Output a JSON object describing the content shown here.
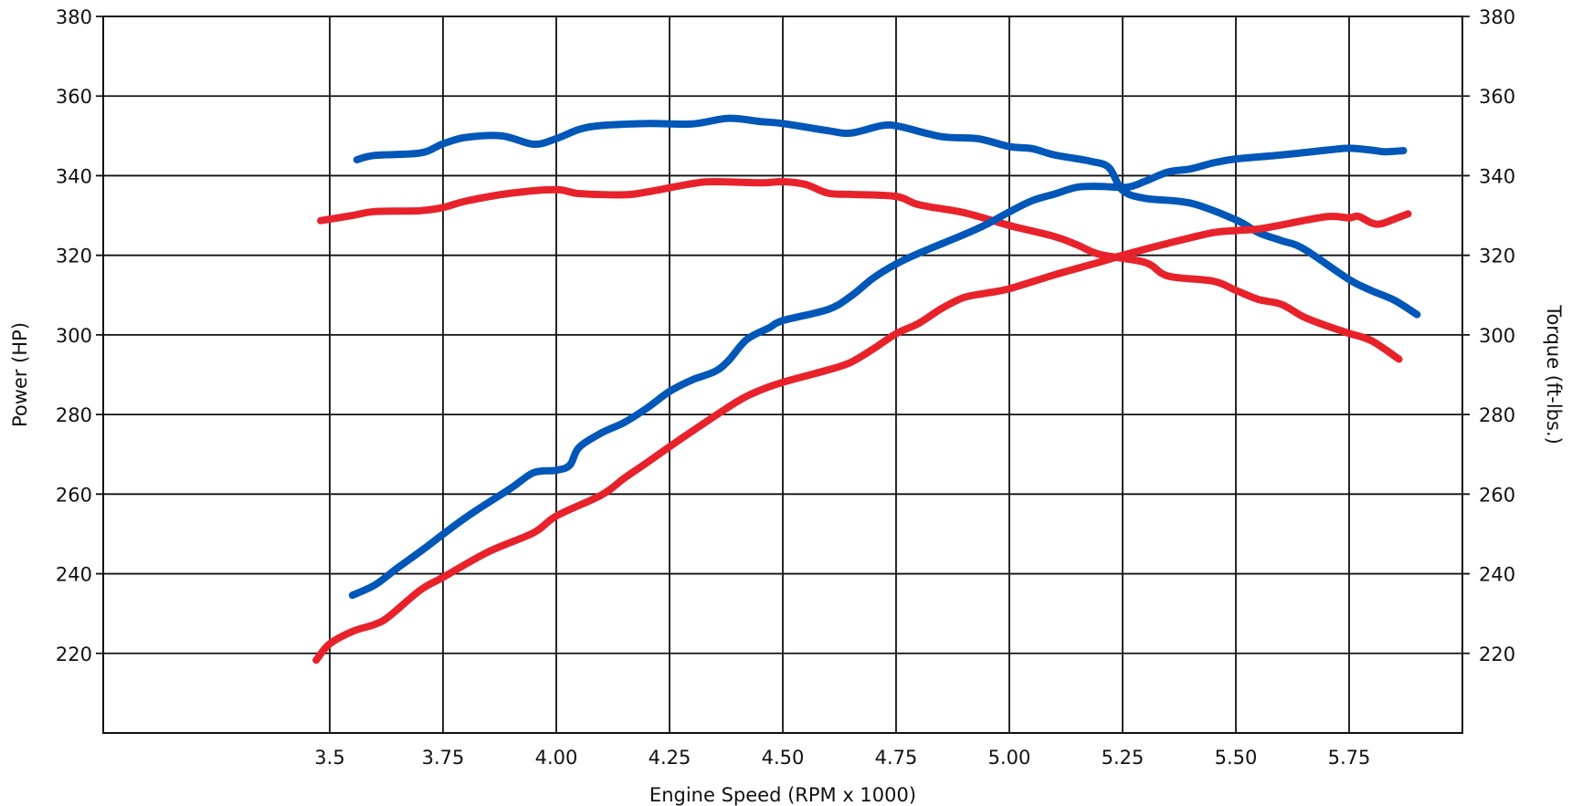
{
  "chart_data": {
    "type": "line",
    "title": "",
    "xlabel": "Engine Speed (RPM x 1000)",
    "ylabel_left": "Power (HP)",
    "ylabel_right": "Torque (ft-lbs.)",
    "xlim": [
      3.0,
      6.0
    ],
    "ylim_left": [
      200,
      380
    ],
    "ylim_right": [
      200,
      380
    ],
    "grid": true,
    "legend": "none",
    "x_ticks": [
      "3.5",
      "3.75",
      "4.00",
      "4.25",
      "4.50",
      "4.75",
      "5.00",
      "5.25",
      "5.50",
      "5.75"
    ],
    "y_ticks_left": [
      "220",
      "240",
      "260",
      "280",
      "300",
      "320",
      "340",
      "360",
      "380"
    ],
    "y_ticks_right": [
      "220",
      "240",
      "260",
      "280",
      "300",
      "320",
      "340",
      "360",
      "380"
    ],
    "series": [
      {
        "color": "#0057b8",
        "axis": "right",
        "points": [
          [
            3.56,
            344
          ],
          [
            3.6,
            345.1
          ],
          [
            3.7,
            345.7
          ],
          [
            3.75,
            348
          ],
          [
            3.8,
            349.6
          ],
          [
            3.88,
            350
          ],
          [
            3.95,
            347.9
          ],
          [
            4.0,
            349.3
          ],
          [
            4.05,
            351.6
          ],
          [
            4.1,
            352.6
          ],
          [
            4.2,
            353.1
          ],
          [
            4.3,
            353
          ],
          [
            4.38,
            354.4
          ],
          [
            4.45,
            353.6
          ],
          [
            4.5,
            353.1
          ],
          [
            4.6,
            351.3
          ],
          [
            4.65,
            350.7
          ],
          [
            4.72,
            352.6
          ],
          [
            4.76,
            352.3
          ],
          [
            4.85,
            349.8
          ],
          [
            4.93,
            349.3
          ],
          [
            5.0,
            347.3
          ],
          [
            5.05,
            346.8
          ],
          [
            5.1,
            345.2
          ],
          [
            5.18,
            343.6
          ],
          [
            5.22,
            342
          ],
          [
            5.25,
            336.3
          ],
          [
            5.3,
            334.3
          ],
          [
            5.4,
            333.1
          ],
          [
            5.5,
            328.9
          ],
          [
            5.55,
            325.7
          ],
          [
            5.6,
            323.7
          ],
          [
            5.65,
            321.6
          ],
          [
            5.75,
            313.9
          ],
          [
            5.8,
            311.1
          ],
          [
            5.85,
            308.7
          ],
          [
            5.9,
            305.1
          ]
        ]
      },
      {
        "color": "#e8222b",
        "axis": "right",
        "points": [
          [
            3.48,
            328.7
          ],
          [
            3.55,
            330
          ],
          [
            3.6,
            331
          ],
          [
            3.7,
            331.2
          ],
          [
            3.75,
            332
          ],
          [
            3.8,
            333.6
          ],
          [
            3.9,
            335.6
          ],
          [
            4.0,
            336.5
          ],
          [
            4.05,
            335.5
          ],
          [
            4.15,
            335.2
          ],
          [
            4.2,
            335.9
          ],
          [
            4.3,
            338
          ],
          [
            4.35,
            338.5
          ],
          [
            4.45,
            338.2
          ],
          [
            4.5,
            338.5
          ],
          [
            4.55,
            337.8
          ],
          [
            4.6,
            335.6
          ],
          [
            4.65,
            335.3
          ],
          [
            4.75,
            334.8
          ],
          [
            4.8,
            332.7
          ],
          [
            4.9,
            330.7
          ],
          [
            5.0,
            327.5
          ],
          [
            5.1,
            324.7
          ],
          [
            5.15,
            322.6
          ],
          [
            5.2,
            320.2
          ],
          [
            5.3,
            318.2
          ],
          [
            5.35,
            314.8
          ],
          [
            5.45,
            313.5
          ],
          [
            5.5,
            311.2
          ],
          [
            5.55,
            308.9
          ],
          [
            5.6,
            307.7
          ],
          [
            5.65,
            304.5
          ],
          [
            5.7,
            302.3
          ],
          [
            5.75,
            300.4
          ],
          [
            5.8,
            298.5
          ],
          [
            5.86,
            293.9
          ]
        ]
      },
      {
        "color": "#0057b8",
        "axis": "left",
        "points": [
          [
            3.55,
            234.6
          ],
          [
            3.6,
            237.2
          ],
          [
            3.65,
            241.5
          ],
          [
            3.7,
            245.6
          ],
          [
            3.8,
            254.1
          ],
          [
            3.9,
            261.5
          ],
          [
            3.95,
            265.4
          ],
          [
            4.0,
            266
          ],
          [
            4.03,
            267.3
          ],
          [
            4.05,
            271.7
          ],
          [
            4.1,
            275.4
          ],
          [
            4.15,
            278
          ],
          [
            4.2,
            281.6
          ],
          [
            4.25,
            285.8
          ],
          [
            4.3,
            288.7
          ],
          [
            4.35,
            290.8
          ],
          [
            4.38,
            293.5
          ],
          [
            4.42,
            298.8
          ],
          [
            4.47,
            301.8
          ],
          [
            4.5,
            303.6
          ],
          [
            4.6,
            306.4
          ],
          [
            4.65,
            309.7
          ],
          [
            4.7,
            314.3
          ],
          [
            4.75,
            317.8
          ],
          [
            4.8,
            320.5
          ],
          [
            4.9,
            325.2
          ],
          [
            4.95,
            327.8
          ],
          [
            5.0,
            330.9
          ],
          [
            5.05,
            333.7
          ],
          [
            5.1,
            335.4
          ],
          [
            5.15,
            337.1
          ],
          [
            5.2,
            337.3
          ],
          [
            5.26,
            337.1
          ],
          [
            5.3,
            338.6
          ],
          [
            5.35,
            340.9
          ],
          [
            5.4,
            341.7
          ],
          [
            5.45,
            343.2
          ],
          [
            5.5,
            344.2
          ],
          [
            5.6,
            345.2
          ],
          [
            5.7,
            346.4
          ],
          [
            5.75,
            346.9
          ],
          [
            5.8,
            346.4
          ],
          [
            5.83,
            346
          ],
          [
            5.87,
            346.3
          ]
        ]
      },
      {
        "color": "#e8222b",
        "axis": "left",
        "points": [
          [
            3.47,
            218.3
          ],
          [
            3.5,
            222.4
          ],
          [
            3.55,
            225.5
          ],
          [
            3.6,
            227.3
          ],
          [
            3.63,
            229.2
          ],
          [
            3.7,
            235.9
          ],
          [
            3.75,
            239.1
          ],
          [
            3.85,
            245.5
          ],
          [
            3.95,
            250.3
          ],
          [
            4.0,
            254.5
          ],
          [
            4.1,
            259.8
          ],
          [
            4.15,
            264
          ],
          [
            4.2,
            267.9
          ],
          [
            4.25,
            271.9
          ],
          [
            4.3,
            275.8
          ],
          [
            4.4,
            283.3
          ],
          [
            4.45,
            286.1
          ],
          [
            4.5,
            288.1
          ],
          [
            4.6,
            291.2
          ],
          [
            4.65,
            293.1
          ],
          [
            4.7,
            296.5
          ],
          [
            4.75,
            300.3
          ],
          [
            4.8,
            302.9
          ],
          [
            4.85,
            306.6
          ],
          [
            4.9,
            309.4
          ],
          [
            4.95,
            310.5
          ],
          [
            5.0,
            311.6
          ],
          [
            5.1,
            315.1
          ],
          [
            5.2,
            318.3
          ],
          [
            5.25,
            320
          ],
          [
            5.35,
            323
          ],
          [
            5.45,
            325.7
          ],
          [
            5.5,
            326.2
          ],
          [
            5.55,
            326.6
          ],
          [
            5.6,
            327.6
          ],
          [
            5.7,
            329.7
          ],
          [
            5.75,
            329.4
          ],
          [
            5.77,
            329.8
          ],
          [
            5.8,
            328.1
          ],
          [
            5.82,
            327.9
          ],
          [
            5.85,
            329.1
          ],
          [
            5.88,
            330.4
          ]
        ]
      }
    ]
  }
}
